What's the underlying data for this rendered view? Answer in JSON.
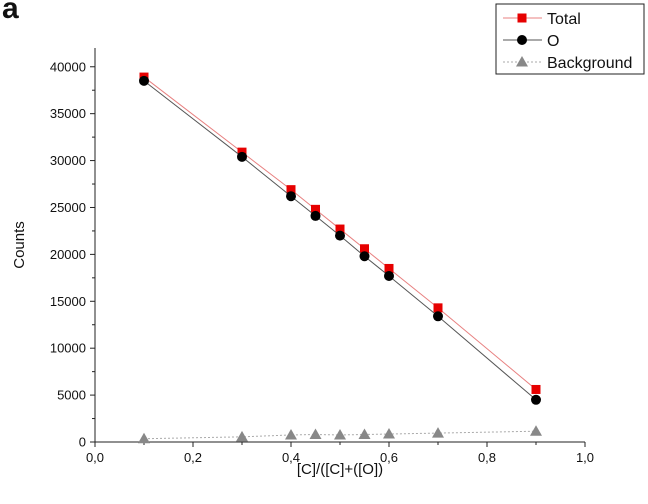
{
  "panel_label": "a",
  "chart_data": {
    "type": "scatter",
    "title": "",
    "xlabel": "[C]/([C]+([O])",
    "ylabel": "Counts",
    "xlim": [
      0.0,
      1.0
    ],
    "ylim": [
      0,
      42000
    ],
    "x_ticks": [
      0.0,
      0.2,
      0.4,
      0.6,
      0.8,
      1.0
    ],
    "x_tick_labels": [
      "0,0",
      "0,2",
      "0,4",
      "0,6",
      "0,8",
      "1,0"
    ],
    "y_ticks": [
      0,
      5000,
      10000,
      15000,
      20000,
      25000,
      30000,
      35000,
      40000
    ],
    "y_tick_labels": [
      "0",
      "5000",
      "10000",
      "15000",
      "20000",
      "25000",
      "30000",
      "35000",
      "40000"
    ],
    "grid": false,
    "legend_position": "top-right",
    "x": [
      0.1,
      0.3,
      0.4,
      0.45,
      0.5,
      0.55,
      0.6,
      0.7,
      0.9
    ],
    "series": [
      {
        "name": "Total",
        "marker": "square",
        "color": "#e60000",
        "line": "solid",
        "values": [
          38900,
          30900,
          26900,
          24800,
          22700,
          20600,
          18500,
          14300,
          5600
        ]
      },
      {
        "name": "O",
        "marker": "circle",
        "color": "#000000",
        "line": "solid",
        "values": [
          38500,
          30400,
          26200,
          24100,
          22000,
          19800,
          17700,
          13400,
          4500
        ]
      },
      {
        "name": "Background",
        "marker": "triangle",
        "color": "#888888",
        "line": "dotted",
        "values": [
          350,
          550,
          750,
          800,
          750,
          800,
          850,
          950,
          1150
        ]
      }
    ]
  }
}
